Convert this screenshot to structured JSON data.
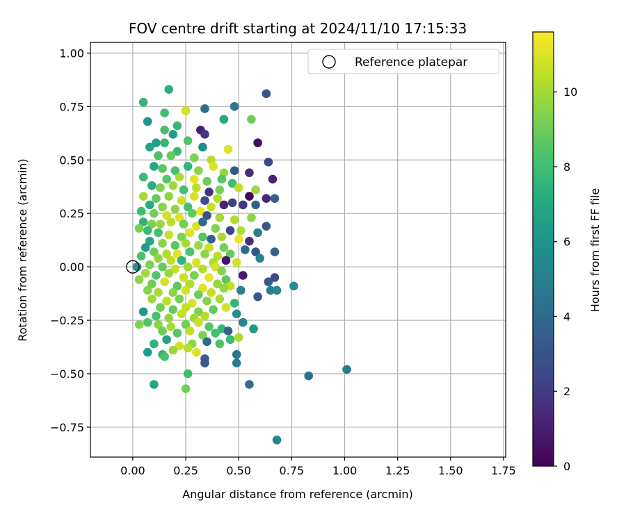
{
  "chart_data": {
    "type": "scatter",
    "title": "FOV centre drift starting at 2024/11/10 17:15:33",
    "xlabel": "Angular distance from reference (arcmin)",
    "ylabel": "Rotation from reference (arcmin)",
    "xlim": [
      -0.2,
      1.76
    ],
    "ylim": [
      -0.89,
      1.05
    ],
    "x_ticks": [
      "0.00",
      "0.25",
      "0.50",
      "0.75",
      "1.00",
      "1.25",
      "1.50",
      "1.75"
    ],
    "x_tick_values": [
      0,
      0.25,
      0.5,
      0.75,
      1.0,
      1.25,
      1.5,
      1.75
    ],
    "y_ticks": [
      "−0.75",
      "−0.50",
      "−0.25",
      "0.00",
      "0.25",
      "0.50",
      "0.75",
      "1.00"
    ],
    "y_tick_values": [
      -0.75,
      -0.5,
      -0.25,
      0,
      0.25,
      0.5,
      0.75,
      1.0
    ],
    "grid": true,
    "legend": {
      "placement": "top-right",
      "entries": [
        {
          "label": "Reference platepar",
          "marker": "open-circle"
        }
      ]
    },
    "reference_point": {
      "x": 0,
      "y": 0
    },
    "colorbar": {
      "label": "Hours from first FF file",
      "colormap": "viridis",
      "range": [
        0,
        11.6
      ],
      "ticks": [
        "0",
        "2",
        "4",
        "6",
        "8",
        "10"
      ],
      "tick_values": [
        0,
        2,
        4,
        6,
        8,
        10
      ]
    },
    "points": [
      [
        0.17,
        0.83,
        7.3
      ],
      [
        0.63,
        0.81,
        3.0
      ],
      [
        0.05,
        0.77,
        7.6
      ],
      [
        0.48,
        0.75,
        4.6
      ],
      [
        0.34,
        0.74,
        4.0
      ],
      [
        0.25,
        0.73,
        10.8
      ],
      [
        0.15,
        0.72,
        8.0
      ],
      [
        0.56,
        0.69,
        9.1
      ],
      [
        0.43,
        0.69,
        7.0
      ],
      [
        0.07,
        0.68,
        6.0
      ],
      [
        0.21,
        0.66,
        7.7
      ],
      [
        0.15,
        0.64,
        8.2
      ],
      [
        0.32,
        0.64,
        1.0
      ],
      [
        0.34,
        0.62,
        1.8
      ],
      [
        0.19,
        0.62,
        6.3
      ],
      [
        0.11,
        0.58,
        6.4
      ],
      [
        0.15,
        0.58,
        7.6
      ],
      [
        0.26,
        0.59,
        8.4
      ],
      [
        0.59,
        0.58,
        0.4
      ],
      [
        0.08,
        0.56,
        6.8
      ],
      [
        0.33,
        0.56,
        5.6
      ],
      [
        0.45,
        0.55,
        11.0
      ],
      [
        0.21,
        0.54,
        7.8
      ],
      [
        0.12,
        0.52,
        8.2
      ],
      [
        0.18,
        0.52,
        8.9
      ],
      [
        0.29,
        0.51,
        9.3
      ],
      [
        0.37,
        0.5,
        10.3
      ],
      [
        0.64,
        0.49,
        2.4
      ],
      [
        0.1,
        0.47,
        7.0
      ],
      [
        0.14,
        0.46,
        8.6
      ],
      [
        0.2,
        0.45,
        8.2
      ],
      [
        0.26,
        0.47,
        7.5
      ],
      [
        0.31,
        0.45,
        9.5
      ],
      [
        0.38,
        0.47,
        10.9
      ],
      [
        0.43,
        0.44,
        9.7
      ],
      [
        0.48,
        0.45,
        3.2
      ],
      [
        0.55,
        0.44,
        1.5
      ],
      [
        0.05,
        0.42,
        7.8
      ],
      [
        0.16,
        0.41,
        8.4
      ],
      [
        0.22,
        0.42,
        10.1
      ],
      [
        0.29,
        0.41,
        11.2
      ],
      [
        0.35,
        0.4,
        9.0
      ],
      [
        0.42,
        0.41,
        8.5
      ],
      [
        0.47,
        0.39,
        7.9
      ],
      [
        0.66,
        0.41,
        1.2
      ],
      [
        0.09,
        0.38,
        7.2
      ],
      [
        0.13,
        0.37,
        9.4
      ],
      [
        0.19,
        0.38,
        9.9
      ],
      [
        0.24,
        0.36,
        8.1
      ],
      [
        0.3,
        0.37,
        10.4
      ],
      [
        0.36,
        0.35,
        1.7
      ],
      [
        0.41,
        0.36,
        9.2
      ],
      [
        0.5,
        0.37,
        10.5
      ],
      [
        0.58,
        0.36,
        9.9
      ],
      [
        0.05,
        0.33,
        10.0
      ],
      [
        0.11,
        0.32,
        8.8
      ],
      [
        0.17,
        0.33,
        9.6
      ],
      [
        0.23,
        0.31,
        10.7
      ],
      [
        0.29,
        0.33,
        11.0
      ],
      [
        0.34,
        0.31,
        2.6
      ],
      [
        0.4,
        0.32,
        10.2
      ],
      [
        0.47,
        0.3,
        2.2
      ],
      [
        0.55,
        0.33,
        0.2
      ],
      [
        0.63,
        0.32,
        1.3
      ],
      [
        0.67,
        0.32,
        3.4
      ],
      [
        0.08,
        0.29,
        7.1
      ],
      [
        0.14,
        0.28,
        9.5
      ],
      [
        0.2,
        0.27,
        9.7
      ],
      [
        0.26,
        0.28,
        8.2
      ],
      [
        0.32,
        0.26,
        11.3
      ],
      [
        0.37,
        0.28,
        10.6
      ],
      [
        0.43,
        0.29,
        1.1
      ],
      [
        0.52,
        0.29,
        1.9
      ],
      [
        0.58,
        0.29,
        3.5
      ],
      [
        0.04,
        0.26,
        8.0
      ],
      [
        0.1,
        0.25,
        9.1
      ],
      [
        0.16,
        0.24,
        10.8
      ],
      [
        0.22,
        0.23,
        11.1
      ],
      [
        0.28,
        0.25,
        8.7
      ],
      [
        0.35,
        0.24,
        2.9
      ],
      [
        0.41,
        0.23,
        10.0
      ],
      [
        0.48,
        0.22,
        10.3
      ],
      [
        0.56,
        0.23,
        9.5
      ],
      [
        0.05,
        0.21,
        7.5
      ],
      [
        0.09,
        0.2,
        9.3
      ],
      [
        0.13,
        0.2,
        9.8
      ],
      [
        0.18,
        0.21,
        10.4
      ],
      [
        0.24,
        0.2,
        9.0
      ],
      [
        0.3,
        0.19,
        10.9
      ],
      [
        0.33,
        0.21,
        3.9
      ],
      [
        0.39,
        0.18,
        9.4
      ],
      [
        0.46,
        0.17,
        2.3
      ],
      [
        0.51,
        0.17,
        10.2
      ],
      [
        0.59,
        0.16,
        5.0
      ],
      [
        0.63,
        0.19,
        3.2
      ],
      [
        0.03,
        0.18,
        9.2
      ],
      [
        0.07,
        0.17,
        7.8
      ],
      [
        0.12,
        0.16,
        8.1
      ],
      [
        0.17,
        0.15,
        10.6
      ],
      [
        0.23,
        0.14,
        9.4
      ],
      [
        0.27,
        0.16,
        11.0
      ],
      [
        0.33,
        0.14,
        8.5
      ],
      [
        0.37,
        0.13,
        3.6
      ],
      [
        0.42,
        0.14,
        10.1
      ],
      [
        0.5,
        0.13,
        11.3
      ],
      [
        0.55,
        0.12,
        1.6
      ],
      [
        0.08,
        0.12,
        6.9
      ],
      [
        0.14,
        0.11,
        9.5
      ],
      [
        0.2,
        0.1,
        8.6
      ],
      [
        0.25,
        0.11,
        10.0
      ],
      [
        0.31,
        0.1,
        9.8
      ],
      [
        0.36,
        0.09,
        10.7
      ],
      [
        0.43,
        0.09,
        9.1
      ],
      [
        0.53,
        0.08,
        3.9
      ],
      [
        0.58,
        0.07,
        3.0
      ],
      [
        0.06,
        0.09,
        6.2
      ],
      [
        0.1,
        0.07,
        9.0
      ],
      [
        0.16,
        0.06,
        10.2
      ],
      [
        0.21,
        0.06,
        11.1
      ],
      [
        0.27,
        0.07,
        8.3
      ],
      [
        0.34,
        0.06,
        9.6
      ],
      [
        0.4,
        0.05,
        10.4
      ],
      [
        0.46,
        0.06,
        8.9
      ],
      [
        0.6,
        0.04,
        5.2
      ],
      [
        0.67,
        0.07,
        3.5
      ],
      [
        0.04,
        0.05,
        8.2
      ],
      [
        0.12,
        0.04,
        9.7
      ],
      [
        0.18,
        0.03,
        10.5
      ],
      [
        0.23,
        0.03,
        7.4
      ],
      [
        0.3,
        0.02,
        11.0
      ],
      [
        0.38,
        0.02,
        10.1
      ],
      [
        0.44,
        0.03,
        0.6
      ],
      [
        0.49,
        0.02,
        10.8
      ],
      [
        0.02,
        0.0,
        5.8
      ],
      [
        0.08,
        0.01,
        9.3
      ],
      [
        0.14,
        0.0,
        8.8
      ],
      [
        0.2,
        -0.01,
        10.6
      ],
      [
        0.26,
        0.0,
        9.9
      ],
      [
        0.33,
        -0.01,
        10.3
      ],
      [
        0.39,
        0.0,
        10.9
      ],
      [
        0.42,
        -0.02,
        9.5
      ],
      [
        0.06,
        -0.03,
        10.0
      ],
      [
        0.11,
        -0.04,
        8.4
      ],
      [
        0.17,
        -0.03,
        9.8
      ],
      [
        0.24,
        -0.05,
        10.7
      ],
      [
        0.29,
        -0.04,
        9.2
      ],
      [
        0.36,
        -0.05,
        11.2
      ],
      [
        0.44,
        -0.06,
        8.6
      ],
      [
        0.52,
        -0.04,
        0.8
      ],
      [
        0.67,
        -0.05,
        2.6
      ],
      [
        0.03,
        -0.06,
        9.6
      ],
      [
        0.09,
        -0.08,
        9.1
      ],
      [
        0.15,
        -0.07,
        10.9
      ],
      [
        0.21,
        -0.09,
        8.7
      ],
      [
        0.27,
        -0.08,
        10.2
      ],
      [
        0.33,
        -0.1,
        11.1
      ],
      [
        0.4,
        -0.08,
        9.8
      ],
      [
        0.46,
        -0.09,
        10.5
      ],
      [
        0.64,
        -0.07,
        3.1
      ],
      [
        0.07,
        -0.11,
        9.4
      ],
      [
        0.12,
        -0.12,
        10.1
      ],
      [
        0.19,
        -0.12,
        9.5
      ],
      [
        0.25,
        -0.11,
        10.8
      ],
      [
        0.31,
        -0.13,
        9.0
      ],
      [
        0.37,
        -0.12,
        10.6
      ],
      [
        0.43,
        -0.1,
        9.7
      ],
      [
        0.51,
        -0.11,
        5.1
      ],
      [
        0.65,
        -0.11,
        4.9
      ],
      [
        0.68,
        -0.11,
        5.4
      ],
      [
        0.76,
        -0.09,
        5.5
      ],
      [
        0.09,
        -0.15,
        9.9
      ],
      [
        0.16,
        -0.16,
        10.4
      ],
      [
        0.22,
        -0.15,
        9.2
      ],
      [
        0.28,
        -0.17,
        10.9
      ],
      [
        0.35,
        -0.16,
        9.5
      ],
      [
        0.41,
        -0.15,
        10.1
      ],
      [
        0.48,
        -0.17,
        7.6
      ],
      [
        0.59,
        -0.14,
        3.2
      ],
      [
        0.13,
        -0.19,
        9.0
      ],
      [
        0.19,
        -0.2,
        8.8
      ],
      [
        0.25,
        -0.19,
        10.5
      ],
      [
        0.31,
        -0.21,
        9.3
      ],
      [
        0.38,
        -0.2,
        8.9
      ],
      [
        0.44,
        -0.19,
        10.8
      ],
      [
        0.05,
        -0.21,
        6.2
      ],
      [
        0.11,
        -0.23,
        8.2
      ],
      [
        0.17,
        -0.24,
        9.7
      ],
      [
        0.23,
        -0.22,
        10.6
      ],
      [
        0.29,
        -0.24,
        9.9
      ],
      [
        0.34,
        -0.23,
        10.3
      ],
      [
        0.49,
        -0.22,
        5.6
      ],
      [
        0.07,
        -0.26,
        8.4
      ],
      [
        0.12,
        -0.27,
        9.5
      ],
      [
        0.18,
        -0.28,
        10.0
      ],
      [
        0.25,
        -0.27,
        9.1
      ],
      [
        0.31,
        -0.26,
        10.7
      ],
      [
        0.36,
        -0.28,
        8.5
      ],
      [
        0.42,
        -0.29,
        7.7
      ],
      [
        0.52,
        -0.26,
        5.3
      ],
      [
        0.57,
        -0.29,
        6.2
      ],
      [
        0.03,
        -0.27,
        9.4
      ],
      [
        0.14,
        -0.3,
        9.0
      ],
      [
        0.21,
        -0.31,
        8.6
      ],
      [
        0.27,
        -0.3,
        10.5
      ],
      [
        0.33,
        -0.32,
        9.3
      ],
      [
        0.39,
        -0.31,
        8.1
      ],
      [
        0.45,
        -0.3,
        3.8
      ],
      [
        0.5,
        -0.33,
        10.2
      ],
      [
        0.1,
        -0.36,
        7.4
      ],
      [
        0.16,
        -0.34,
        6.6
      ],
      [
        0.22,
        -0.37,
        10.8
      ],
      [
        0.28,
        -0.36,
        9.6
      ],
      [
        0.35,
        -0.35,
        4.0
      ],
      [
        0.41,
        -0.36,
        8.3
      ],
      [
        0.46,
        -0.34,
        7.9
      ],
      [
        0.07,
        -0.4,
        6.3
      ],
      [
        0.14,
        -0.41,
        7.5
      ],
      [
        0.19,
        -0.39,
        9.8
      ],
      [
        0.26,
        -0.38,
        10.3
      ],
      [
        0.3,
        -0.4,
        11.0
      ],
      [
        0.34,
        -0.43,
        3.5
      ],
      [
        0.49,
        -0.41,
        4.4
      ],
      [
        0.15,
        -0.42,
        8.2
      ],
      [
        0.34,
        -0.45,
        3.1
      ],
      [
        0.49,
        -0.45,
        4.9
      ],
      [
        0.83,
        -0.51,
        4.3
      ],
      [
        1.01,
        -0.48,
        4.8
      ],
      [
        0.26,
        -0.5,
        8.0
      ],
      [
        0.1,
        -0.55,
        6.8
      ],
      [
        0.55,
        -0.55,
        4.1
      ],
      [
        0.25,
        -0.57,
        9.1
      ],
      [
        0.68,
        -0.81,
        5.3
      ]
    ]
  }
}
